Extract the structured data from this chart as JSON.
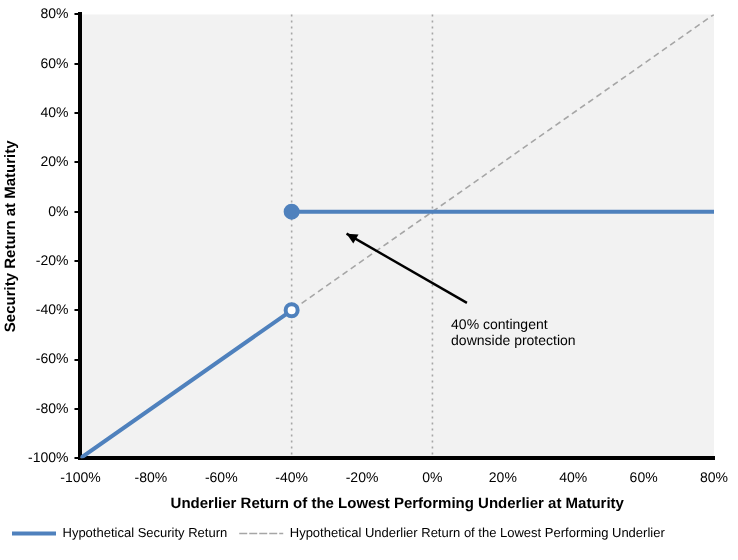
{
  "chart_data": {
    "type": "line",
    "xlabel": "Underlier Return of the Lowest Performing Underlier at Maturity",
    "ylabel": "Security Return at Maturity",
    "series": [
      {
        "name": "Hypothetical Security Return",
        "color": "#4f81bd",
        "x": [
          -100,
          -40,
          null,
          -40,
          80
        ],
        "values": [
          -100,
          -40,
          null,
          0,
          0
        ],
        "marker": "circle",
        "line_style": "solid"
      },
      {
        "name": "Hypothetical Underlier Return of the Lowest Performing Underlier",
        "color": "#a6a6a6",
        "x": [
          -100,
          80
        ],
        "values": [
          -100,
          80
        ],
        "marker": "none",
        "line_style": "dashed"
      }
    ],
    "ref_lines": [
      {
        "axis": "x",
        "value": -40,
        "color": "#a6a6a6",
        "line_style": "dotted"
      },
      {
        "axis": "x",
        "value": 0,
        "color": "#a6a6a6",
        "line_style": "dotted"
      }
    ],
    "annotations": [
      "40% contingent downside protection"
    ],
    "xlim": [
      -100,
      80
    ],
    "xticks": [
      {
        "value": -100,
        "label": "-100%"
      },
      {
        "value": -80,
        "label": "-80%"
      },
      {
        "value": -60,
        "label": "-60%"
      },
      {
        "value": -40,
        "label": "-40%"
      },
      {
        "value": -20,
        "label": "-20%"
      },
      {
        "value": 0,
        "label": "0%"
      },
      {
        "value": 20,
        "label": "20%"
      },
      {
        "value": 40,
        "label": "40%"
      },
      {
        "value": 60,
        "label": "60%"
      },
      {
        "value": 80,
        "label": "80%"
      }
    ],
    "ylim": [
      -100,
      80
    ],
    "yticks": [
      {
        "value": -100,
        "label": "-100%"
      },
      {
        "value": -80,
        "label": "-80%"
      },
      {
        "value": -60,
        "label": "-60%"
      },
      {
        "value": -40,
        "label": "-40%"
      },
      {
        "value": -20,
        "label": "-20%"
      },
      {
        "value": 0,
        "label": "0%"
      },
      {
        "value": 20,
        "label": "20%"
      },
      {
        "value": 40,
        "label": "40%"
      },
      {
        "value": 60,
        "label": "60%"
      },
      {
        "value": 80,
        "label": "80%"
      }
    ],
    "grid": false,
    "legend": "bottom"
  }
}
